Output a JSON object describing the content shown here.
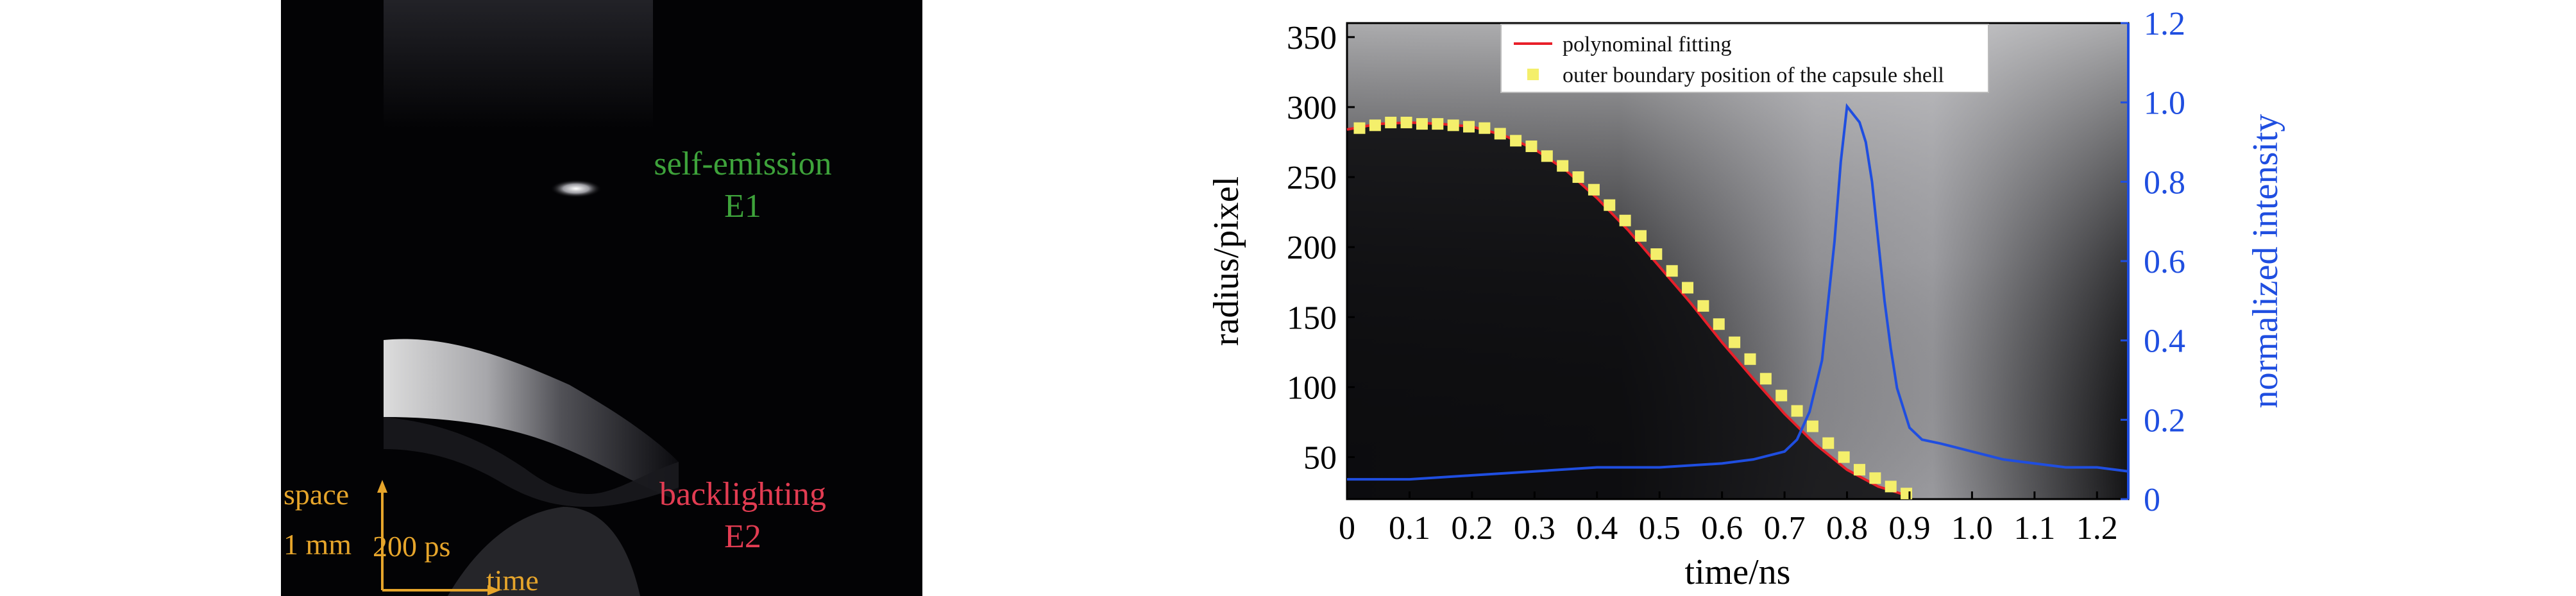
{
  "streak_image": {
    "labels": {
      "emission_line1": "self-emission",
      "emission_line2": "E1",
      "backlight_line1": "backlighting",
      "backlight_line2": "E2",
      "space": "space",
      "space_scale": "1 mm",
      "time_scale": "200 ps",
      "time": "time"
    },
    "colors": {
      "emission": "#3ea33b",
      "backlight": "#e23c52",
      "scale": "#e6a52b"
    }
  },
  "chart_data": {
    "type": "line",
    "xlabel": "time/ns",
    "ylabel": "radius/pixel",
    "y2label": "normalized intensity",
    "xlim": [
      0,
      1.25
    ],
    "ylim": [
      20,
      360
    ],
    "y2lim": [
      0,
      1.2
    ],
    "x_ticks": [
      "0",
      "0.1",
      "0.2",
      "0.3",
      "0.4",
      "0.5",
      "0.6",
      "0.7",
      "0.8",
      "0.9",
      "1.0",
      "1.1",
      "1.2"
    ],
    "y_ticks": [
      "50",
      "100",
      "150",
      "200",
      "250",
      "300",
      "350"
    ],
    "y2_ticks": [
      "0",
      "0.2",
      "0.4",
      "0.6",
      "0.8",
      "1.0",
      "1.2"
    ],
    "legend_position": "top",
    "grid": false,
    "colors": {
      "fit": "#e8202a",
      "markers": "#f4ef6b",
      "intensity": "#1f4ee0",
      "right_axis": "#1f4ee0"
    },
    "series": [
      {
        "name": "polynominal fitting",
        "axis": "left",
        "x": [
          0.0,
          0.05,
          0.1,
          0.15,
          0.2,
          0.25,
          0.3,
          0.35,
          0.4,
          0.45,
          0.5,
          0.55,
          0.6,
          0.65,
          0.7,
          0.75,
          0.8,
          0.85,
          0.9
        ],
        "y": [
          284,
          288,
          289,
          288,
          286,
          280,
          270,
          255,
          235,
          212,
          186,
          160,
          132,
          106,
          81,
          59,
          41,
          29,
          22
        ]
      },
      {
        "name": "outer boundary position of the capsule shell",
        "axis": "left",
        "x": [
          0.02,
          0.045,
          0.07,
          0.095,
          0.12,
          0.145,
          0.17,
          0.195,
          0.22,
          0.245,
          0.27,
          0.295,
          0.32,
          0.345,
          0.37,
          0.395,
          0.42,
          0.445,
          0.47,
          0.495,
          0.52,
          0.545,
          0.57,
          0.595,
          0.62,
          0.645,
          0.67,
          0.695,
          0.72,
          0.745,
          0.77,
          0.795,
          0.82,
          0.845,
          0.87,
          0.895
        ],
        "y": [
          285,
          287,
          289,
          289,
          288,
          288,
          287,
          286,
          285,
          281,
          276,
          272,
          265,
          258,
          250,
          241,
          230,
          219,
          208,
          195,
          183,
          171,
          158,
          145,
          132,
          120,
          106,
          94,
          83,
          72,
          60,
          50,
          41,
          35,
          29,
          24
        ]
      },
      {
        "name": "normalized intensity",
        "axis": "right",
        "x": [
          0.0,
          0.1,
          0.2,
          0.3,
          0.4,
          0.5,
          0.6,
          0.65,
          0.7,
          0.72,
          0.74,
          0.76,
          0.77,
          0.78,
          0.79,
          0.8,
          0.81,
          0.82,
          0.83,
          0.84,
          0.85,
          0.86,
          0.87,
          0.88,
          0.9,
          0.92,
          0.95,
          1.0,
          1.05,
          1.1,
          1.15,
          1.2,
          1.25
        ],
        "y": [
          0.05,
          0.05,
          0.06,
          0.07,
          0.08,
          0.08,
          0.09,
          0.1,
          0.12,
          0.15,
          0.22,
          0.35,
          0.5,
          0.65,
          0.85,
          0.99,
          0.97,
          0.95,
          0.9,
          0.8,
          0.65,
          0.5,
          0.38,
          0.28,
          0.18,
          0.15,
          0.14,
          0.12,
          0.1,
          0.09,
          0.08,
          0.08,
          0.07
        ]
      }
    ]
  }
}
